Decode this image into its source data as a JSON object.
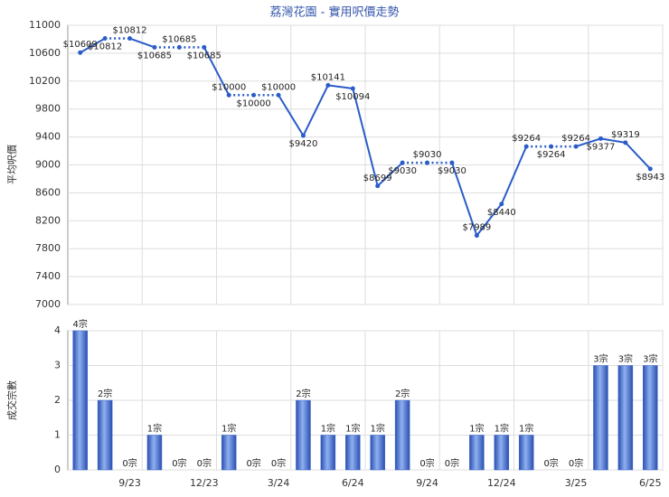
{
  "chart_data": [
    {
      "type": "line",
      "title": "荔灣花園 - 實用呎價走勢",
      "y_label": "平均呎價",
      "categories": [
        null,
        null,
        "9/23",
        null,
        null,
        "12/23",
        null,
        null,
        "3/24",
        null,
        null,
        "6/24",
        null,
        null,
        "9/24",
        null,
        null,
        "12/24",
        null,
        null,
        "3/25",
        null,
        null,
        "6/25"
      ],
      "series": [
        {
          "name": "平均呎價",
          "color": "#2a5cc8",
          "values": [
            10609,
            10812,
            10812,
            10685,
            10685,
            10685,
            10000,
            10000,
            10000,
            9420,
            10141,
            10094,
            8699,
            9030,
            9030,
            9030,
            7989,
            8440,
            9264,
            9264,
            9264,
            9377,
            9319,
            8943
          ],
          "value_labels": [
            "$10609",
            "$10812",
            "$10812",
            "$10685",
            "$10685",
            "$10685",
            "$10000",
            "$10000",
            "$10000",
            "$9420",
            "$10141",
            "$10094",
            "$8699",
            "$9030",
            "$9030",
            "$9030",
            "$7989",
            "$8440",
            "$9264",
            "$9264",
            "$9264",
            "$9377",
            "$9319",
            "$8943"
          ]
        }
      ],
      "ylim": [
        7000,
        11000
      ],
      "yticks": [
        7000,
        7400,
        7800,
        8200,
        8600,
        9000,
        9400,
        9800,
        10200,
        10600,
        11000
      ],
      "grid": true
    },
    {
      "type": "bar",
      "y_label": "成交宗數",
      "categories": [
        null,
        null,
        "9/23",
        null,
        null,
        "12/23",
        null,
        null,
        "3/24",
        null,
        null,
        "6/24",
        null,
        null,
        "9/24",
        null,
        null,
        "12/24",
        null,
        null,
        "3/25",
        null,
        null,
        "6/25"
      ],
      "values": [
        4,
        2,
        0,
        1,
        0,
        0,
        1,
        0,
        0,
        2,
        1,
        1,
        1,
        2,
        0,
        0,
        1,
        1,
        1,
        0,
        0,
        3,
        3,
        3
      ],
      "value_labels": [
        "4宗",
        "2宗",
        "0宗",
        "1宗",
        "0宗",
        "0宗",
        "1宗",
        "0宗",
        "0宗",
        "2宗",
        "1宗",
        "1宗",
        "1宗",
        "2宗",
        "0宗",
        "0宗",
        "1宗",
        "1宗",
        "1宗",
        "0宗",
        "0宗",
        "3宗",
        "3宗",
        "3宗"
      ],
      "color": "#3b64c8",
      "ylim": [
        0,
        4
      ],
      "yticks": [
        0,
        1,
        2,
        3,
        4
      ],
      "grid": true
    }
  ]
}
